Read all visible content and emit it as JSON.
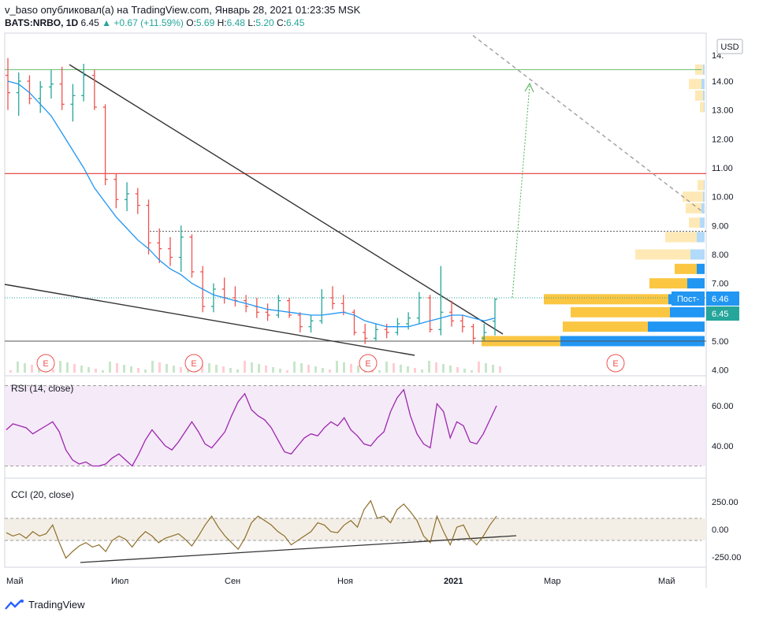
{
  "header": {
    "line1": "v_baso опубликовал(а) на TradingView.com, Январь 28, 2021 01:23:35 MSK",
    "symbol": "BATS:NRBO, 1D",
    "last": "6.45",
    "change": "▲ +0.67 (+11.59%)",
    "o_label": "O:",
    "o_value": "5.69",
    "h_label": "H:",
    "h_value": "6.48",
    "l_label": "L:",
    "l_value": "5.20",
    "c_label": "C:",
    "c_value": "6.45"
  },
  "currency": "USD",
  "brand": "TradingView",
  "brand_icon": "tradingview-logo-icon",
  "colors": {
    "up": "#26a69a",
    "down": "#ef5350",
    "ma": "#2196f3",
    "rsi": "#9c27b0",
    "cci": "#8d6e2b",
    "resistance": "#e53935",
    "support_green": "#66bb6a"
  },
  "chart_data": [
    {
      "type": "bar",
      "title": "",
      "panel": "price",
      "ylim": [
        4.0,
        14.9
      ],
      "y_ticks": [
        "14.00",
        "13.00",
        "12.00",
        "11.00",
        "10.00",
        "9.00",
        "8.00",
        "7.00",
        "6.00",
        "5.00",
        "4.00"
      ],
      "y_partial_top": "14.",
      "x_ticks": [
        "Май",
        "Июл",
        "Сен",
        "Ноя",
        "2021",
        "Мар",
        "Май"
      ],
      "price_label": "Пост-",
      "price_value": "6.46",
      "last_price": "6.45",
      "earnings_markers": [
        "E",
        "E",
        "E",
        "E"
      ],
      "levels": {
        "green_line": 14.4,
        "red_line": 10.8,
        "dotted_black": 8.8,
        "bottom_line": 5.0,
        "last_price_dotted": 6.5
      },
      "ohlc_approx": [
        [
          14.2,
          14.8,
          13.0,
          13.6
        ],
        [
          13.6,
          14.3,
          12.8,
          14.0
        ],
        [
          14.0,
          14.2,
          13.2,
          13.4
        ],
        [
          13.4,
          14.0,
          12.9,
          13.8
        ],
        [
          13.8,
          14.4,
          13.4,
          13.9
        ],
        [
          13.9,
          14.5,
          13.0,
          13.2
        ],
        [
          13.2,
          13.9,
          12.6,
          13.5
        ],
        [
          13.5,
          14.6,
          13.3,
          14.2
        ],
        [
          14.2,
          14.4,
          13.0,
          13.1
        ],
        [
          13.1,
          13.2,
          10.4,
          10.6
        ],
        [
          10.6,
          10.8,
          9.6,
          9.9
        ],
        [
          9.9,
          10.5,
          9.5,
          10.1
        ],
        [
          10.1,
          10.3,
          9.4,
          9.7
        ],
        [
          9.7,
          9.9,
          8.0,
          8.4
        ],
        [
          8.4,
          8.9,
          7.7,
          8.2
        ],
        [
          8.2,
          8.6,
          7.6,
          7.9
        ],
        [
          7.9,
          9.0,
          7.4,
          8.6
        ],
        [
          8.6,
          8.7,
          7.2,
          7.4
        ],
        [
          7.4,
          7.6,
          6.0,
          6.2
        ],
        [
          6.2,
          7.0,
          6.0,
          6.8
        ],
        [
          6.8,
          7.2,
          6.3,
          6.5
        ],
        [
          6.5,
          6.9,
          6.2,
          6.4
        ],
        [
          6.4,
          6.6,
          6.0,
          6.2
        ],
        [
          6.2,
          6.5,
          5.8,
          6.0
        ],
        [
          6.0,
          6.3,
          5.7,
          5.9
        ],
        [
          5.9,
          6.6,
          5.8,
          6.4
        ],
        [
          6.4,
          6.5,
          5.8,
          5.9
        ],
        [
          5.9,
          6.0,
          5.3,
          5.5
        ],
        [
          5.5,
          5.9,
          5.3,
          5.7
        ],
        [
          5.7,
          6.8,
          5.6,
          6.5
        ],
        [
          6.5,
          6.9,
          6.1,
          6.3
        ],
        [
          6.3,
          6.6,
          5.9,
          6.0
        ],
        [
          6.0,
          6.1,
          5.2,
          5.3
        ],
        [
          5.3,
          5.6,
          4.9,
          5.1
        ],
        [
          5.1,
          5.6,
          5.0,
          5.4
        ],
        [
          5.4,
          5.6,
          5.1,
          5.3
        ],
        [
          5.3,
          5.8,
          5.2,
          5.6
        ],
        [
          5.6,
          6.0,
          5.4,
          5.8
        ],
        [
          5.8,
          6.7,
          5.6,
          6.5
        ],
        [
          6.5,
          6.6,
          5.3,
          5.4
        ],
        [
          5.4,
          7.6,
          5.2,
          6.0
        ],
        [
          6.0,
          6.4,
          5.5,
          5.7
        ],
        [
          5.7,
          5.9,
          5.3,
          5.5
        ],
        [
          5.5,
          5.6,
          4.9,
          5.1
        ],
        [
          5.1,
          5.6,
          5.0,
          5.3
        ],
        [
          5.69,
          6.48,
          5.2,
          6.45
        ]
      ],
      "ma_approx": [
        14.0,
        13.9,
        13.6,
        13.2,
        12.8,
        12.2,
        11.6,
        11.0,
        10.3,
        9.8,
        9.3,
        8.9,
        8.5,
        8.2,
        7.8,
        7.5,
        7.3,
        7.0,
        6.8,
        6.6,
        6.5,
        6.4,
        6.3,
        6.2,
        6.1,
        6.05,
        6.0,
        5.95,
        5.9,
        5.9,
        5.95,
        6.0,
        5.9,
        5.7,
        5.6,
        5.5,
        5.5,
        5.5,
        5.6,
        5.7,
        5.8,
        5.9,
        5.9,
        5.8,
        5.7,
        5.8
      ]
    },
    {
      "type": "line",
      "title": "RSI (14, close)",
      "panel": "rsi",
      "ylim": [
        28,
        72
      ],
      "y_ticks": [
        "60.00",
        "40.00"
      ],
      "bands": [
        30,
        70
      ],
      "values": [
        48,
        51,
        50,
        49,
        46,
        48,
        50,
        52,
        47,
        38,
        33,
        31,
        32,
        30,
        30,
        31,
        34,
        36,
        33,
        30,
        36,
        43,
        48,
        44,
        40,
        38,
        42,
        47,
        52,
        47,
        41,
        39,
        43,
        47,
        55,
        62,
        66,
        58,
        55,
        53,
        49,
        43,
        37,
        36,
        40,
        44,
        46,
        45,
        49,
        52,
        50,
        54,
        48,
        45,
        41,
        40,
        44,
        47,
        57,
        64,
        68,
        55,
        46,
        41,
        39,
        61,
        57,
        44,
        52,
        50,
        42,
        41,
        46,
        53,
        60
      ]
    },
    {
      "type": "line",
      "title": "CCI (20, close)",
      "panel": "cci",
      "ylim": [
        -300,
        370
      ],
      "y_ticks": [
        "250.00",
        "0.00",
        "-250.00"
      ],
      "bands": [
        -100,
        100
      ],
      "values": [
        -30,
        -60,
        -40,
        -80,
        -20,
        -60,
        -40,
        40,
        -120,
        -260,
        -200,
        -150,
        -120,
        -160,
        -140,
        -200,
        -100,
        -60,
        -90,
        -160,
        -80,
        -20,
        -60,
        -120,
        -80,
        -60,
        -40,
        -90,
        -150,
        -60,
        40,
        120,
        20,
        -60,
        -120,
        -180,
        -80,
        60,
        120,
        80,
        40,
        -20,
        -60,
        -140,
        -100,
        -60,
        -20,
        60,
        40,
        -20,
        -30,
        40,
        80,
        20,
        180,
        260,
        100,
        120,
        60,
        180,
        230,
        160,
        80,
        -60,
        -120,
        120,
        -20,
        -140,
        20,
        40,
        -80,
        -140,
        -60,
        40,
        120
      ]
    }
  ]
}
